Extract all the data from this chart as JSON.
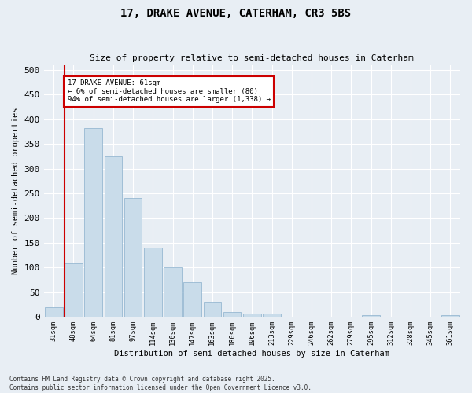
{
  "title": "17, DRAKE AVENUE, CATERHAM, CR3 5BS",
  "subtitle": "Size of property relative to semi-detached houses in Caterham",
  "xlabel": "Distribution of semi-detached houses by size in Caterham",
  "ylabel": "Number of semi-detached properties",
  "bins": [
    "31sqm",
    "48sqm",
    "64sqm",
    "81sqm",
    "97sqm",
    "114sqm",
    "130sqm",
    "147sqm",
    "163sqm",
    "180sqm",
    "196sqm",
    "213sqm",
    "229sqm",
    "246sqm",
    "262sqm",
    "279sqm",
    "295sqm",
    "312sqm",
    "328sqm",
    "345sqm",
    "361sqm"
  ],
  "values": [
    20,
    108,
    382,
    325,
    240,
    140,
    100,
    70,
    30,
    10,
    7,
    6,
    0,
    0,
    0,
    0,
    3,
    0,
    0,
    0,
    3
  ],
  "bar_color": "#c9dcea",
  "bar_edge_color": "#8ab0cc",
  "vline_color": "#cc0000",
  "vline_bin_index": 1,
  "property_label": "17 DRAKE AVENUE: 61sqm",
  "annotation_line1": "← 6% of semi-detached houses are smaller (80)",
  "annotation_line2": "94% of semi-detached houses are larger (1,338) →",
  "annotation_box_color": "#cc0000",
  "footer_line1": "Contains HM Land Registry data © Crown copyright and database right 2025.",
  "footer_line2": "Contains public sector information licensed under the Open Government Licence v3.0.",
  "bg_color": "#e8eef4",
  "plot_bg_color": "#e8eef4",
  "ylim": [
    0,
    510
  ],
  "yticks": [
    0,
    50,
    100,
    150,
    200,
    250,
    300,
    350,
    400,
    450,
    500
  ]
}
